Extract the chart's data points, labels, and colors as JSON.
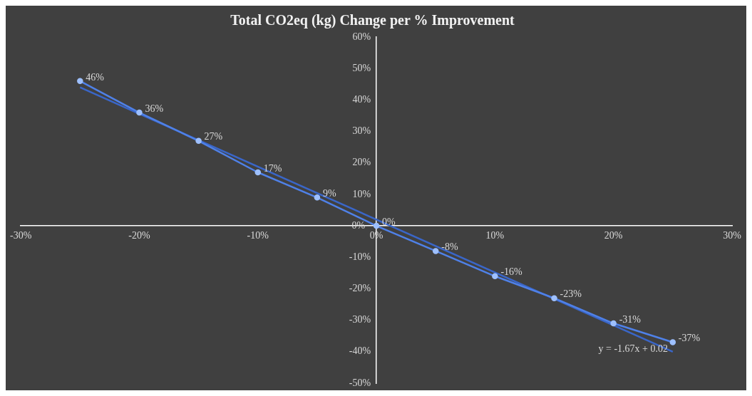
{
  "chart_data": {
    "type": "line",
    "title": "Total CO2eq (kg) Change per % Improvement",
    "x": [
      -25,
      -20,
      -15,
      -10,
      -5,
      0,
      5,
      10,
      15,
      20,
      25
    ],
    "series": [
      {
        "type": "line",
        "color": "#4f81e8",
        "values": [
          46,
          36,
          27,
          17,
          9,
          0,
          -8,
          -16,
          -23,
          -31,
          -37
        ],
        "value_labels": [
          "46%",
          "36%",
          "27%",
          "17%",
          "9%",
          "0%",
          "-8%",
          "-16%",
          "-23%",
          "-31%",
          "-37%"
        ],
        "marker": "circle"
      },
      {
        "type": "line",
        "color": "#3a66c8",
        "x": [
          -25,
          25
        ],
        "values": [
          44,
          -40
        ],
        "marker": "none"
      }
    ],
    "xlim": [
      -30,
      30
    ],
    "xticks": [
      {
        "value": -30,
        "label": "-30%"
      },
      {
        "value": -20,
        "label": "-20%"
      },
      {
        "value": -10,
        "label": "-10%"
      },
      {
        "value": 0,
        "label": "0%"
      },
      {
        "value": 10,
        "label": "10%"
      },
      {
        "value": 20,
        "label": "20%"
      },
      {
        "value": 30,
        "label": "30%"
      }
    ],
    "ylim": [
      -50,
      60
    ],
    "yticks": [
      {
        "value": -50,
        "label": "-50%"
      },
      {
        "value": -40,
        "label": "-40%"
      },
      {
        "value": -30,
        "label": "-30%"
      },
      {
        "value": -20,
        "label": "-20%"
      },
      {
        "value": -10,
        "label": "-10%"
      },
      {
        "value": 0,
        "label": "0%"
      },
      {
        "value": 10,
        "label": "10%"
      },
      {
        "value": 20,
        "label": "20%"
      },
      {
        "value": 30,
        "label": "30%"
      },
      {
        "value": 40,
        "label": "40%"
      },
      {
        "value": 50,
        "label": "50%"
      },
      {
        "value": 60,
        "label": "60%"
      }
    ],
    "annotations": [
      "y = -1.67x + 0.02"
    ],
    "grid": false,
    "legend": false
  }
}
